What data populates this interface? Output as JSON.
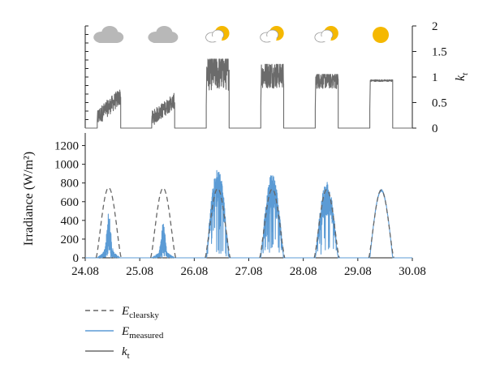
{
  "chart_data": [
    {
      "type": "line",
      "panel": "top",
      "y_axis_side": "right",
      "ylabel_main": "k",
      "ylabel_sub": "t",
      "ylim": [
        0,
        2
      ],
      "yticks": [
        "0",
        "0.5",
        "1",
        "1.5",
        "2"
      ],
      "series": [
        {
          "name": "k_t",
          "color": "#6b6b6b",
          "days": [
            {
              "start": 24.3,
              "end": 24.73,
              "level": 0.35,
              "max": 1.25,
              "spread": 0.55
            },
            {
              "start": 25.3,
              "end": 25.72,
              "level": 0.3,
              "max": 0.85,
              "spread": 0.5
            },
            {
              "start": 26.3,
              "end": 26.72,
              "level": 1.1,
              "max": 1.35,
              "spread": 0.6
            },
            {
              "start": 27.3,
              "end": 27.72,
              "level": 1.05,
              "max": 1.25,
              "spread": 0.45
            },
            {
              "start": 28.3,
              "end": 28.72,
              "level": 0.95,
              "max": 1.05,
              "spread": 0.3
            },
            {
              "start": 29.3,
              "end": 29.72,
              "level": 0.93,
              "max": 0.97,
              "spread": 0.03
            }
          ]
        }
      ],
      "weather_icons": [
        {
          "x": 24.5,
          "icon": "cloud-icon"
        },
        {
          "x": 25.5,
          "icon": "cloud-icon"
        },
        {
          "x": 26.5,
          "icon": "partly-cloudy-icon"
        },
        {
          "x": 27.5,
          "icon": "partly-cloudy-icon"
        },
        {
          "x": 28.5,
          "icon": "partly-cloudy-icon"
        },
        {
          "x": 29.5,
          "icon": "sun-icon"
        }
      ]
    },
    {
      "type": "line",
      "panel": "bottom",
      "ylabel": "Irradiance (W/m²)",
      "ylim": [
        0,
        1300
      ],
      "yticks": [
        "0",
        "200",
        "400",
        "600",
        "800",
        "1000",
        "1200"
      ],
      "xlim": [
        24.08,
        30.08
      ],
      "xticks": [
        "24.08",
        "25.08",
        "26.08",
        "27.08",
        "28.08",
        "29.08",
        "30.08"
      ],
      "series": [
        {
          "name": "E_clearsky",
          "style": "dashed",
          "color": "#666666",
          "days": [
            {
              "start": 24.28,
              "end": 24.74,
              "peak": 750
            },
            {
              "start": 25.28,
              "end": 25.74,
              "peak": 745
            },
            {
              "start": 26.28,
              "end": 26.74,
              "peak": 740
            },
            {
              "start": 27.28,
              "end": 27.74,
              "peak": 735
            },
            {
              "start": 28.28,
              "end": 28.74,
              "peak": 730
            },
            {
              "start": 29.28,
              "end": 29.74,
              "peak": 725
            }
          ]
        },
        {
          "name": "E_measured",
          "style": "solid",
          "color": "#5b9bd5",
          "days": [
            {
              "start": 24.3,
              "end": 24.72,
              "peak": 480,
              "fraction": 0.35,
              "spread": 0.5
            },
            {
              "start": 25.3,
              "end": 25.72,
              "peak": 370,
              "fraction": 0.25,
              "spread": 0.45
            },
            {
              "start": 26.3,
              "end": 26.72,
              "peak": 960,
              "fraction": 0.95,
              "spread": 0.55
            },
            {
              "start": 27.3,
              "end": 27.72,
              "peak": 900,
              "fraction": 0.9,
              "spread": 0.5
            },
            {
              "start": 28.3,
              "end": 28.72,
              "peak": 810,
              "fraction": 0.95,
              "spread": 0.3
            },
            {
              "start": 29.3,
              "end": 29.72,
              "peak": 720,
              "fraction": 1.0,
              "spread": 0.02
            }
          ]
        }
      ]
    }
  ],
  "legend": [
    {
      "key": "clearsky",
      "main": "E",
      "sub": "clearsky",
      "style": "dashed",
      "color": "#666666"
    },
    {
      "key": "measured",
      "main": "E",
      "sub": "measured",
      "style": "solid",
      "color": "#5b9bd5"
    },
    {
      "key": "kt",
      "main": "k",
      "sub": "t",
      "style": "solid",
      "color": "#6b6b6b"
    }
  ]
}
